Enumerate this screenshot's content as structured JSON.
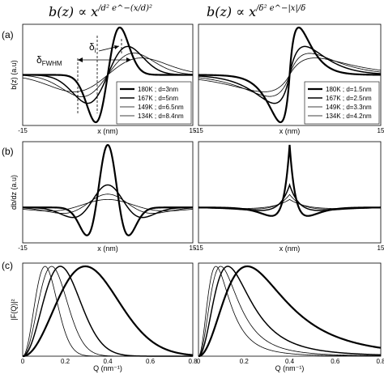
{
  "formulas": {
    "left": {
      "base": "b(z) ∝ x",
      "sup": "/d² e^−(x/d)²"
    },
    "right": {
      "base": "b(z) ∝ x",
      "sup": "/δ² e^−|x|/δ"
    }
  },
  "panel_letters": [
    "(a)",
    "(b)",
    "(c)"
  ],
  "annotations": {
    "delta_i": {
      "symbol": "δ",
      "sub": "i"
    },
    "delta_fwhm": {
      "symbol": "δ",
      "sub": "FWHM"
    }
  },
  "chart_data": [
    {
      "type": "line",
      "panel": "a-left",
      "xlabel": "x (nm)",
      "ylabel": "b(z) (a.u)",
      "xlim": [
        -15,
        15
      ],
      "x_ticks": [
        "-15",
        "15"
      ],
      "grid": false,
      "legend": "bottom-right",
      "model": "gaussian",
      "series": [
        {
          "name": "180K ; d=3nm",
          "d": 3,
          "stroke_width": 2.2
        },
        {
          "name": "167K ; d=5nm",
          "d": 5,
          "stroke_width": 1.5
        },
        {
          "name": "149K ; d=6.5nm",
          "d": 6.5,
          "stroke_width": 0.8
        },
        {
          "name": "134K ; d=8.4nm",
          "d": 8.4,
          "stroke_width": 0.8
        }
      ]
    },
    {
      "type": "line",
      "panel": "a-right",
      "xlabel": "x (nm)",
      "ylabel": "",
      "xlim": [
        -15,
        15
      ],
      "x_ticks": [
        "-15",
        "15"
      ],
      "grid": false,
      "legend": "bottom-right",
      "model": "exponential",
      "series": [
        {
          "name": "180K ; d=1.5nm",
          "d": 1.5,
          "stroke_width": 2.2
        },
        {
          "name": "167K ; d=2.5nm",
          "d": 2.5,
          "stroke_width": 1.5
        },
        {
          "name": "149K ; d=3.3nm",
          "d": 3.3,
          "stroke_width": 0.8
        },
        {
          "name": "134K ; d=4.2nm",
          "d": 4.2,
          "stroke_width": 0.8
        }
      ]
    },
    {
      "type": "line",
      "panel": "b-left",
      "xlabel": "x (nm)",
      "ylabel": "db/dz (a.u)",
      "xlim": [
        -15,
        15
      ],
      "x_ticks": [
        "-15",
        "15"
      ],
      "grid": false,
      "model": "gaussian-derivative"
    },
    {
      "type": "line",
      "panel": "b-right",
      "xlabel": "x (nm)",
      "ylabel": "",
      "xlim": [
        -15,
        15
      ],
      "x_ticks": [
        "-15",
        "15"
      ],
      "grid": false,
      "model": "exponential-derivative"
    },
    {
      "type": "line",
      "panel": "c-left",
      "xlabel": "Q (nm⁻¹)",
      "ylabel": "|F(Q)|²",
      "xlim": [
        0,
        0.8
      ],
      "x_ticks": [
        "0",
        "0.2",
        "0.4",
        "0.6",
        "0.8"
      ],
      "grid": false,
      "model": "gaussian-form-factor"
    },
    {
      "type": "line",
      "panel": "c-right",
      "xlabel": "Q (nm⁻¹)",
      "ylabel": "",
      "xlim": [
        0,
        0.8
      ],
      "x_ticks": [
        "0",
        "0.2",
        "0.4",
        "0.6",
        "0.8"
      ],
      "grid": false,
      "model": "exponential-form-factor"
    }
  ]
}
